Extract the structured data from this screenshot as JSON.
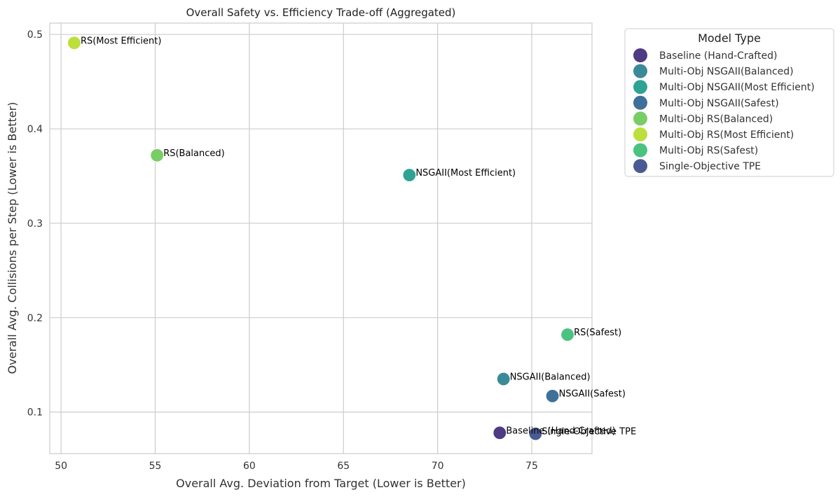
{
  "chart_data": {
    "type": "scatter",
    "title": "Overall Safety vs. Efficiency Trade-off (Aggregated)",
    "xlabel": "Overall Avg. Deviation from Target (Lower is Better)",
    "ylabel": "Overall Avg. Collisions per Step (Lower is Better)",
    "xlim": [
      49.4,
      78.2
    ],
    "ylim": [
      0.056,
      0.512
    ],
    "xticks": [
      50,
      55,
      60,
      65,
      70,
      75
    ],
    "yticks": [
      0.1,
      0.2,
      0.3,
      0.4,
      0.5
    ],
    "xtick_labels": [
      "50",
      "55",
      "60",
      "65",
      "70",
      "75"
    ],
    "ytick_labels": [
      "0.1",
      "0.2",
      "0.3",
      "0.4",
      "0.5"
    ],
    "grid": true,
    "legend": {
      "title": "Model Type",
      "placement": "outside-top-right"
    },
    "series": [
      {
        "name": "Baseline (Hand-Crafted)",
        "color": "#4f3a84",
        "points": [
          {
            "x": 73.3,
            "y": 0.078,
            "label": "Baseline (Hand-Crafted)"
          }
        ]
      },
      {
        "name": "Multi-Obj NSGAII(Balanced)",
        "color": "#3b8a98",
        "points": [
          {
            "x": 73.5,
            "y": 0.135,
            "label": "NSGAII(Balanced)"
          }
        ]
      },
      {
        "name": "Multi-Obj NSGAII(Most Efficient)",
        "color": "#2ea393",
        "points": [
          {
            "x": 68.5,
            "y": 0.351,
            "label": "NSGAII(Most Efficient)"
          }
        ]
      },
      {
        "name": "Multi-Obj NSGAII(Safest)",
        "color": "#3e7099",
        "points": [
          {
            "x": 76.1,
            "y": 0.117,
            "label": "NSGAII(Safest)"
          }
        ]
      },
      {
        "name": "Multi-Obj RS(Balanced)",
        "color": "#79cd66",
        "points": [
          {
            "x": 55.1,
            "y": 0.372,
            "label": "RS(Balanced)"
          }
        ]
      },
      {
        "name": "Multi-Obj RS(Most Efficient)",
        "color": "#bddf3c",
        "points": [
          {
            "x": 50.7,
            "y": 0.491,
            "label": "RS(Most Efficient)"
          }
        ]
      },
      {
        "name": "Multi-Obj RS(Safest)",
        "color": "#4cc280",
        "points": [
          {
            "x": 76.9,
            "y": 0.182,
            "label": "RS(Safest)"
          }
        ]
      },
      {
        "name": "Single-Objective TPE",
        "color": "#4a5b93",
        "points": [
          {
            "x": 75.2,
            "y": 0.077,
            "label": "Single-Objective TPE"
          }
        ]
      }
    ]
  }
}
